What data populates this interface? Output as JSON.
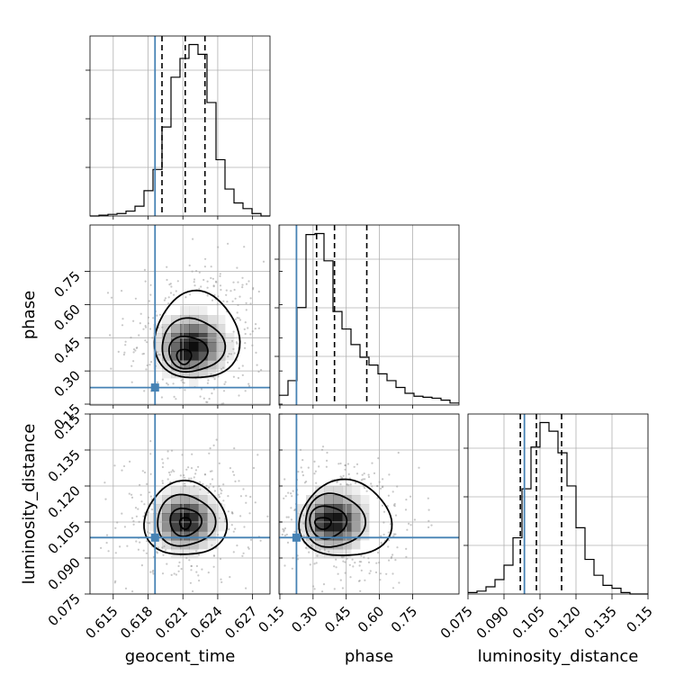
{
  "chart_data": {
    "type": "corner",
    "parameters": [
      "geocent_time",
      "phase",
      "luminosity_distance"
    ],
    "axis_labels": {
      "geocent_time": "geocent_time",
      "phase": "phase",
      "luminosity_distance": "luminosity_distance"
    },
    "ranges": {
      "geocent_time": [
        0.613,
        0.6285
      ],
      "phase": [
        0.146,
        0.96
      ],
      "luminosity_distance": [
        0.075,
        0.15
      ]
    },
    "ticks": {
      "geocent_time": [
        "0.615",
        "0.618",
        "0.621",
        "0.624",
        "0.627"
      ],
      "phase": [
        "0.15",
        "0.30",
        "0.45",
        "0.60",
        "0.75"
      ],
      "luminosity_distance": [
        "0.075",
        "0.090",
        "0.105",
        "0.120",
        "0.135",
        "0.15"
      ]
    },
    "truth_values": {
      "geocent_time": 0.6186,
      "phase": 0.225,
      "luminosity_distance": 0.0985
    },
    "quantiles": {
      "geocent_time": [
        0.6192,
        0.6212,
        0.6229
      ],
      "phase": [
        0.316,
        0.397,
        0.543
      ],
      "luminosity_distance": [
        0.0968,
        0.1035,
        0.114
      ]
    },
    "histograms": {
      "geocent_time": {
        "bin_start": 0.613,
        "bin_width": 0.000775,
        "counts": [
          0,
          1,
          2,
          3,
          6,
          12,
          31,
          57,
          109,
          170,
          193,
          210,
          198,
          139,
          69,
          33,
          16,
          9,
          3,
          0
        ]
      },
      "phase": {
        "bin_start": 0.146,
        "bin_width": 0.0407,
        "counts": [
          10,
          25,
          100,
          175,
          176,
          148,
          96,
          78,
          62,
          49,
          41,
          32,
          25,
          18,
          12,
          9,
          8,
          7,
          5,
          2
        ]
      },
      "luminosity_distance": {
        "bin_start": 0.075,
        "bin_width": 0.00375,
        "counts": [
          1,
          2,
          5,
          10,
          20,
          39,
          73,
          102,
          119,
          113,
          98,
          75,
          46,
          24,
          13,
          6,
          4,
          1,
          0,
          0
        ]
      }
    },
    "contours_2d": {
      "phase_vs_geocent_time": {
        "peak": {
          "x": 0.6212,
          "y": 0.36
        },
        "levels": [
          {
            "level": "0.5",
            "cx": 0.6211,
            "cy": 0.365,
            "rx": 0.0006,
            "ry": 0.035
          },
          {
            "level": "1.0",
            "cx": 0.6214,
            "cy": 0.385,
            "rx": 0.0016,
            "ry": 0.075
          },
          {
            "level": "1.5",
            "cx": 0.6218,
            "cy": 0.415,
            "rx": 0.0026,
            "ry": 0.125
          },
          {
            "level": "2.0",
            "cx": 0.6222,
            "cy": 0.455,
            "rx": 0.0035,
            "ry": 0.205
          }
        ]
      },
      "luminosity_distance_vs_geocent_time": {
        "peak": {
          "x": 0.6212,
          "y": 0.1045
        },
        "levels": [
          {
            "level": "0.5",
            "cx": 0.6212,
            "cy": 0.1045,
            "rx": 0.00045,
            "ry": 0.0025
          },
          {
            "level": "1.0",
            "cx": 0.6212,
            "cy": 0.105,
            "rx": 0.0013,
            "ry": 0.006
          },
          {
            "level": "1.5",
            "cx": 0.6212,
            "cy": 0.1055,
            "rx": 0.0024,
            "ry": 0.011
          },
          {
            "level": "2.0",
            "cx": 0.6212,
            "cy": 0.106,
            "rx": 0.0034,
            "ry": 0.016
          }
        ]
      },
      "luminosity_distance_vs_phase": {
        "peak": {
          "x": 0.34,
          "y": 0.1045
        },
        "levels": [
          {
            "level": "0.5",
            "cx": 0.345,
            "cy": 0.1045,
            "rx": 0.035,
            "ry": 0.0025
          },
          {
            "level": "1.0",
            "cx": 0.365,
            "cy": 0.105,
            "rx": 0.08,
            "ry": 0.007
          },
          {
            "level": "1.5",
            "cx": 0.395,
            "cy": 0.1055,
            "rx": 0.13,
            "ry": 0.0115
          },
          {
            "level": "2.0",
            "cx": 0.445,
            "cy": 0.106,
            "rx": 0.2,
            "ry": 0.0165
          }
        ]
      }
    },
    "colors": {
      "truth": "#4682b4",
      "hist": "#000000",
      "scatter": "#9a9a9a",
      "density": "#000000"
    }
  }
}
